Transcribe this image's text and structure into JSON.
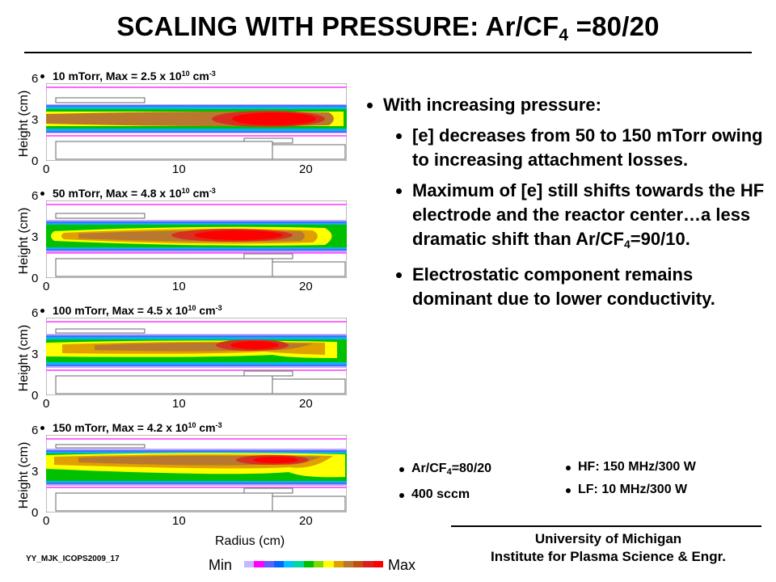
{
  "title": {
    "main": "SCALING WITH  PRESSURE: Ar/CF",
    "sub": "4",
    "tail": " =80/20"
  },
  "panels": [
    {
      "caption": "10 mTorr, Max = 2.5 x 10",
      "exp": "10",
      "unit": " cm",
      "unit_exp": "-3",
      "ylabel": "Height (cm)"
    },
    {
      "caption": "50 mTorr, Max = 4.8 x 10",
      "exp": "10",
      "unit": " cm",
      "unit_exp": "-3",
      "ylabel": "Height (cm)"
    },
    {
      "caption": "100 mTorr, Max = 4.5 x 10",
      "exp": "10",
      "unit": " cm",
      "unit_exp": "-3",
      "ylabel": "Height (cm)"
    },
    {
      "caption": "150 mTorr, Max = 4.2 x 10",
      "exp": "10",
      "unit": " cm",
      "unit_exp": "-3",
      "ylabel": "Height (cm)"
    }
  ],
  "ticks": {
    "y": [
      "6",
      "3",
      "0"
    ],
    "x": [
      "0",
      "10",
      "20"
    ]
  },
  "xlabel": "Radius (cm)",
  "colorbar": {
    "min": "Min",
    "max": "Max",
    "colors": [
      "#c8b4ff",
      "#ff00ff",
      "#6060ff",
      "#0066ff",
      "#00c0ff",
      "#00d8a0",
      "#00c000",
      "#80d800",
      "#ffff00",
      "#e0a000",
      "#b87830",
      "#c05010",
      "#d82020",
      "#ff0000"
    ]
  },
  "bullets": {
    "b1": "With increasing pressure:",
    "b2": "[e] decreases from 50 to 150 mTorr owing to increasing attachment losses.",
    "b3_a": "Maximum of [e] still shifts towards the HF electrode and the reactor center…a less dramatic shift than Ar/CF",
    "b3_sub": "4",
    "b3_b": "=90/10.",
    "b4": "Electrostatic component remains dominant due to lower conductivity."
  },
  "conditions": {
    "gas_a": "Ar/CF",
    "gas_sub": "4",
    "gas_b": "=80/20",
    "flow": "400 sccm",
    "hf": "HF: 150 MHz/300 W",
    "lf": "LF: 10 MHz/300 W"
  },
  "footer": {
    "id": "YY_MJK_ICOPS2009_17",
    "uni1": "University of Michigan",
    "uni2": "Institute for Plasma Science & Engr."
  }
}
